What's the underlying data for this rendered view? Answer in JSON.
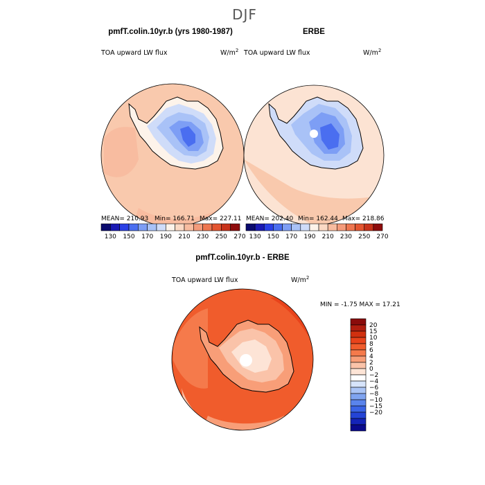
{
  "figure": {
    "title": "DJF"
  },
  "panels": [
    {
      "id": "model",
      "heading": "pmfT.colin.10yr.b (yrs 1980-1987)",
      "variable": "TOA upward LW flux",
      "units_main": "W/m",
      "units_sup": "2",
      "stats": {
        "mean": "MEAN= 210.93",
        "min": "Min= 166.71",
        "max": "Max= 227.11"
      }
    },
    {
      "id": "obs",
      "heading": "ERBE",
      "variable": "TOA upward LW flux",
      "units_main": "W/m",
      "units_sup": "2",
      "stats": {
        "mean": "MEAN= 202.40",
        "min": "Min= 162.44",
        "max": "Max= 218.86"
      }
    },
    {
      "id": "diff",
      "heading": "pmfT.colin.10yr.b - ERBE",
      "variable": "TOA upward LW flux",
      "units_main": "W/m",
      "units_sup": "2",
      "stats": {
        "minmax": "MIN =   -1.75 MAX =   17.21"
      }
    }
  ],
  "colorbar_top": {
    "tick_labels": [
      "130",
      "150",
      "170",
      "190",
      "210",
      "230",
      "250",
      "270"
    ],
    "colors": [
      "#0a0a6e",
      "#1a1ab4",
      "#2a40e6",
      "#4a6ef0",
      "#7d9ef5",
      "#a9c2f7",
      "#cfdcf9",
      "#fdf3ea",
      "#fbd9c4",
      "#f8bca0",
      "#f49b7b",
      "#ee7650",
      "#e45530",
      "#c8321a",
      "#8e0c0c"
    ]
  },
  "colorbar_diff": {
    "tick_labels": [
      "20",
      "15",
      "10",
      "8",
      "6",
      "4",
      "2",
      "0",
      "−2",
      "−4",
      "−6",
      "−8",
      "−10",
      "−15",
      "−20"
    ],
    "colors": [
      "#8a0c0c",
      "#b01e10",
      "#d1300f",
      "#e8431b",
      "#f05c2c",
      "#f57a4b",
      "#f89e78",
      "#fac3a9",
      "#fde4d6",
      "#ffffff",
      "#d7e4fa",
      "#aac4f5",
      "#7fa4f0",
      "#5a84ec",
      "#3a64e6",
      "#2444d6",
      "#1424b8",
      "#0a0a8c"
    ]
  },
  "colors": {
    "mild_warm": "#f9c9ad",
    "pale_warm": "#fce3d3",
    "deep_warm": "#f07a4e",
    "ice_light": "#cfdcf9",
    "ice_mid": "#a9c2f7",
    "ice_dark": "#6b8ff2",
    "ice_core": "#3f6eea",
    "diff_bg": "#f06a38",
    "diff_hot": "#e04a22",
    "diff_cold": "#ffffff"
  }
}
